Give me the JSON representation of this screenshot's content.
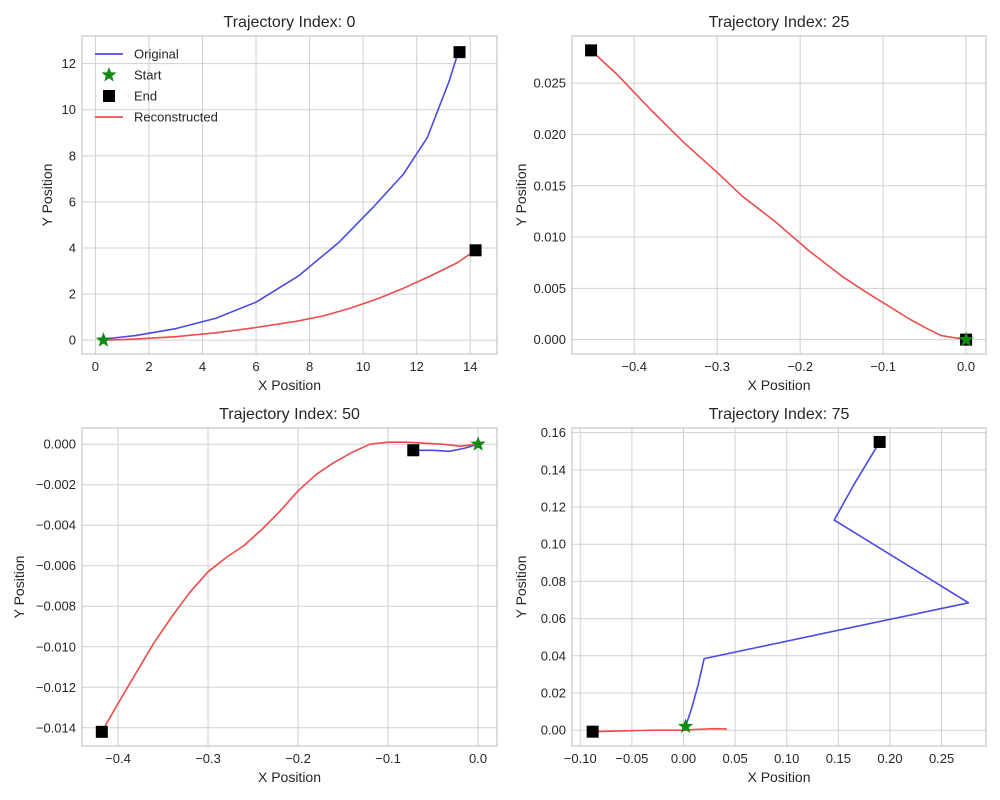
{
  "figure": {
    "legend_labels": {
      "original": "Original",
      "start": "Start",
      "end": "End",
      "reconstructed": "Reconstructed"
    },
    "colors": {
      "original": "#4a4ae6",
      "reconstructed": "#ef4b4b",
      "start": "#138a13",
      "end": "#000000",
      "grid": "#d0d0d0",
      "frame": "#b8b8b8"
    }
  },
  "chart_data": [
    {
      "type": "line",
      "title": "Trajectory Index: 0",
      "xlabel": "X Position",
      "ylabel": "Y Position",
      "xlim": [
        -0.5,
        15.0
      ],
      "ylim": [
        -0.6,
        13.2
      ],
      "xticks": [
        0,
        2,
        4,
        6,
        8,
        10,
        12,
        14
      ],
      "xtick_labels": [
        "0",
        "2",
        "4",
        "6",
        "8",
        "10",
        "12",
        "14"
      ],
      "yticks": [
        0,
        2,
        4,
        6,
        8,
        10,
        12
      ],
      "ytick_labels": [
        "0",
        "2",
        "4",
        "6",
        "8",
        "10",
        "12"
      ],
      "grid": true,
      "legend": "top-left",
      "series": [
        {
          "name": "Original",
          "x": [
            0.3,
            1.5,
            3.0,
            4.5,
            6.0,
            7.6,
            9.1,
            10.4,
            11.5,
            12.4,
            13.2,
            13.5,
            13.6
          ],
          "y": [
            0.05,
            0.2,
            0.5,
            0.95,
            1.65,
            2.8,
            4.25,
            5.8,
            7.2,
            8.8,
            11.2,
            12.3,
            12.5
          ]
        },
        {
          "name": "Reconstructed",
          "x": [
            0.3,
            1.5,
            3.0,
            4.5,
            6.0,
            7.5,
            8.5,
            9.5,
            10.5,
            11.5,
            12.5,
            13.5,
            14.2
          ],
          "y": [
            0.0,
            0.05,
            0.15,
            0.32,
            0.55,
            0.82,
            1.05,
            1.38,
            1.78,
            2.25,
            2.78,
            3.35,
            3.9
          ]
        }
      ],
      "start": [
        0.3,
        0.0
      ],
      "end_points": [
        [
          13.6,
          12.5
        ],
        [
          14.2,
          3.9
        ]
      ]
    },
    {
      "type": "line",
      "title": "Trajectory Index: 25",
      "xlabel": "X Position",
      "ylabel": "Y Position",
      "xlim": [
        -0.475,
        0.024
      ],
      "ylim": [
        -0.0014,
        0.0296
      ],
      "xticks": [
        -0.4,
        -0.3,
        -0.2,
        -0.1,
        0.0
      ],
      "xtick_labels": [
        "−0.4",
        "−0.3",
        "−0.2",
        "−0.1",
        "0.0"
      ],
      "yticks": [
        0.0,
        0.005,
        0.01,
        0.015,
        0.02,
        0.025
      ],
      "ytick_labels": [
        "0.000",
        "0.005",
        "0.010",
        "0.015",
        "0.020",
        "0.025"
      ],
      "grid": true,
      "series": [
        {
          "name": "Reconstructed",
          "x": [
            -0.452,
            -0.42,
            -0.38,
            -0.34,
            -0.3,
            -0.27,
            -0.23,
            -0.19,
            -0.15,
            -0.12,
            -0.09,
            -0.068,
            -0.05,
            -0.03,
            0.0
          ],
          "y": [
            0.0282,
            0.0258,
            0.0224,
            0.0192,
            0.0163,
            0.014,
            0.0115,
            0.0087,
            0.0062,
            0.0046,
            0.0031,
            0.002,
            0.0012,
            0.0004,
            0.0
          ]
        }
      ],
      "start": [
        0.0,
        0.0
      ],
      "end_points": [
        [
          -0.452,
          0.0282
        ],
        [
          0.0,
          0.0
        ]
      ]
    },
    {
      "type": "line",
      "title": "Trajectory Index: 50",
      "xlabel": "X Position",
      "ylabel": "Y Position",
      "xlim": [
        -0.44,
        0.021
      ],
      "ylim": [
        -0.0149,
        0.0008
      ],
      "xticks": [
        -0.4,
        -0.3,
        -0.2,
        -0.1,
        0.0
      ],
      "xtick_labels": [
        "−0.4",
        "−0.3",
        "−0.2",
        "−0.1",
        "0.0"
      ],
      "yticks": [
        0.0,
        -0.002,
        -0.004,
        -0.006,
        -0.008,
        -0.01,
        -0.012,
        -0.014
      ],
      "ytick_labels": [
        "0.000",
        "−0.002",
        "−0.004",
        "−0.006",
        "−0.008",
        "−0.010",
        "−0.012",
        "−0.014"
      ],
      "grid": true,
      "series": [
        {
          "name": "Original",
          "x": [
            -0.072,
            -0.05,
            -0.032,
            -0.015,
            0.0
          ],
          "y": [
            -0.0003,
            -0.0003,
            -0.00035,
            -0.0002,
            0.0
          ]
        },
        {
          "name": "Reconstructed",
          "x": [
            -0.418,
            -0.4,
            -0.38,
            -0.36,
            -0.34,
            -0.32,
            -0.3,
            -0.28,
            -0.26,
            -0.24,
            -0.22,
            -0.2,
            -0.18,
            -0.16,
            -0.14,
            -0.12,
            -0.1,
            -0.08,
            -0.06,
            -0.04,
            -0.02,
            0.0
          ],
          "y": [
            -0.0142,
            -0.0128,
            -0.0113,
            -0.0098,
            -0.0085,
            -0.0073,
            -0.0063,
            -0.0056,
            -0.005,
            -0.0042,
            -0.0033,
            -0.0023,
            -0.0015,
            -0.0009,
            -0.0004,
            0.0,
            0.0001,
            0.0001,
            5e-05,
            0.0,
            -0.0001,
            0.0
          ]
        }
      ],
      "start": [
        0.0,
        0.0
      ],
      "end_points": [
        [
          -0.072,
          -0.0003
        ],
        [
          -0.418,
          -0.0142
        ]
      ]
    },
    {
      "type": "line",
      "title": "Trajectory Index: 75",
      "xlabel": "X Position",
      "ylabel": "Y Position",
      "xlim": [
        -0.108,
        0.293
      ],
      "ylim": [
        -0.0085,
        0.1625
      ],
      "xticks": [
        -0.1,
        -0.05,
        0.0,
        0.05,
        0.1,
        0.15,
        0.2,
        0.25
      ],
      "xtick_labels": [
        "−0.10",
        "−0.05",
        "0.00",
        "0.05",
        "0.10",
        "0.15",
        "0.20",
        "0.25"
      ],
      "yticks": [
        0.0,
        0.02,
        0.04,
        0.06,
        0.08,
        0.1,
        0.12,
        0.14,
        0.16
      ],
      "ytick_labels": [
        "0.00",
        "0.02",
        "0.04",
        "0.06",
        "0.08",
        "0.10",
        "0.12",
        "0.14",
        "0.16"
      ],
      "grid": true,
      "series": [
        {
          "name": "Original",
          "x": [
            0.002,
            0.008,
            0.014,
            0.02,
            0.276,
            0.146,
            0.165,
            0.19
          ],
          "y": [
            0.002,
            0.012,
            0.024,
            0.0385,
            0.0685,
            0.113,
            0.132,
            0.155
          ]
        },
        {
          "name": "Reconstructed",
          "x": [
            -0.088,
            -0.06,
            -0.03,
            0.0,
            0.015,
            0.03,
            0.042
          ],
          "y": [
            -0.0008,
            -0.0004,
            0.0,
            0.0,
            0.0005,
            0.0008,
            0.0007
          ]
        }
      ],
      "start": [
        0.002,
        0.002
      ],
      "end_points": [
        [
          0.19,
          0.155
        ],
        [
          -0.088,
          -0.0008
        ]
      ]
    }
  ]
}
